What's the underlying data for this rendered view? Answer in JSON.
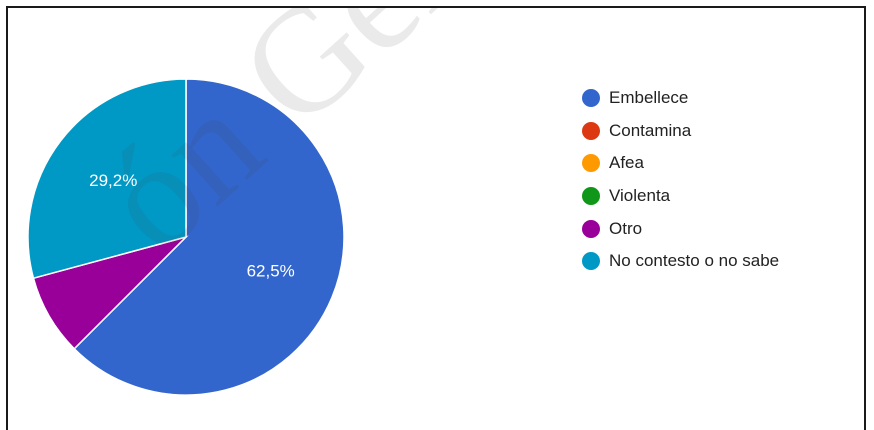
{
  "chart_data": {
    "type": "pie",
    "categories": [
      "Embellece",
      "Contamina",
      "Afea",
      "Violenta",
      "Otro",
      "No contesto o no sabe"
    ],
    "values": [
      62.5,
      0,
      0,
      0,
      8.3,
      29.2
    ],
    "slice_labels": [
      "62,5%",
      "",
      "",
      "",
      "",
      "29,2%"
    ],
    "colors": [
      "#3366cc",
      "#dc3912",
      "#ff9900",
      "#109618",
      "#990099",
      "#0099c6"
    ],
    "legend_position": "right",
    "start_angle": "top, clockwise"
  },
  "legend": {
    "items": [
      {
        "label": "Embellece",
        "color": "#3366cc"
      },
      {
        "label": "Contamina",
        "color": "#dc3912"
      },
      {
        "label": "Afea",
        "color": "#ff9900"
      },
      {
        "label": "Violenta",
        "color": "#109618"
      },
      {
        "label": "Otro",
        "color": "#990099"
      },
      {
        "label": "No contesto o no sabe",
        "color": "#0099c6"
      }
    ]
  },
  "watermark": {
    "text": "ón General de"
  }
}
